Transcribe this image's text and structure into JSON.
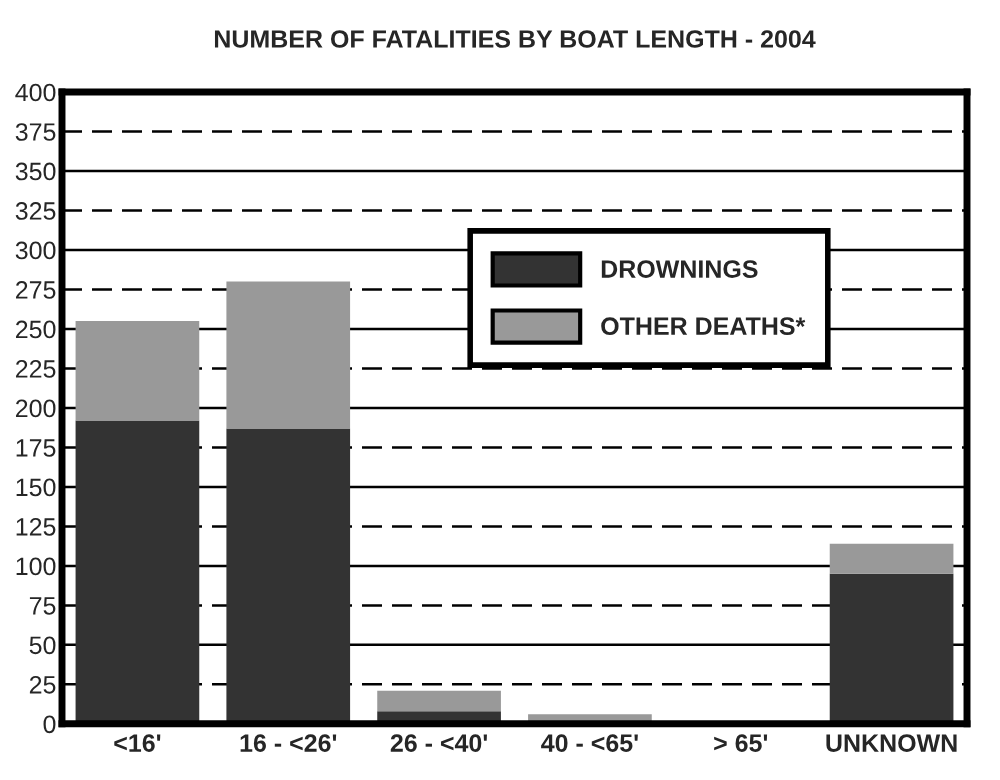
{
  "chart_data": {
    "type": "bar",
    "title": "NUMBER OF FATALITIES BY BOAT LENGTH - 2004",
    "categories": [
      "<16'",
      "16 - <26'",
      "26 - <40'",
      "40 - <65'",
      "> 65'",
      "UNKNOWN"
    ],
    "stacked": true,
    "series": [
      {
        "name": "DROWNINGS",
        "color": "#333333",
        "values": [
          192,
          187,
          8,
          1,
          0,
          95
        ]
      },
      {
        "name": "OTHER DEATHS*",
        "color": "#999999",
        "values": [
          63,
          93,
          13,
          5,
          0,
          19
        ]
      }
    ],
    "ylim": [
      0,
      400
    ],
    "yticks": [
      0,
      25,
      50,
      75,
      100,
      125,
      150,
      175,
      200,
      225,
      250,
      275,
      300,
      325,
      350,
      375,
      400
    ],
    "grid": "y",
    "legend": "top right"
  }
}
